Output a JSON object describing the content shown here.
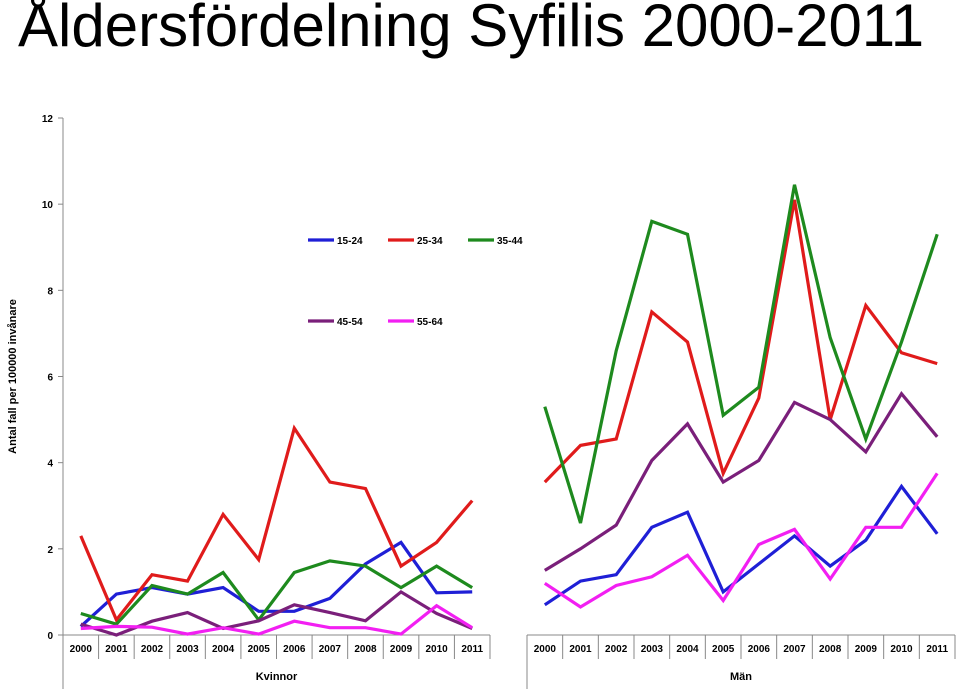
{
  "title": "Åldersfördelning Syfilis 2000-2011",
  "chart_data": {
    "type": "line",
    "ylabel": "Antal fall per 100000 invånare",
    "xlabel": "",
    "ylim": [
      0,
      12
    ],
    "yticks": [
      0,
      2,
      4,
      6,
      8,
      10,
      12
    ],
    "grid": false,
    "legend_position": "top-center, in two rows",
    "categories": [
      "2000",
      "2001",
      "2002",
      "2003",
      "2004",
      "2005",
      "2006",
      "2007",
      "2008",
      "2009",
      "2010",
      "2011"
    ],
    "groups": [
      {
        "name": "Kvinnor",
        "series": [
          {
            "name": "15-24",
            "color": "#1f1fd6",
            "values": [
              0.2,
              0.95,
              1.1,
              0.95,
              1.1,
              0.55,
              0.55,
              0.85,
              1.65,
              2.15,
              0.98,
              1.0
            ]
          },
          {
            "name": "25-34",
            "color": "#e01b1b",
            "values": [
              2.3,
              0.35,
              1.4,
              1.25,
              2.8,
              1.75,
              4.8,
              3.55,
              3.4,
              1.6,
              2.15,
              3.12
            ]
          },
          {
            "name": "35-44",
            "color": "#1e8a1e",
            "values": [
              0.5,
              0.25,
              1.15,
              0.95,
              1.45,
              0.35,
              1.45,
              1.72,
              1.6,
              1.1,
              1.6,
              1.1
            ]
          },
          {
            "name": "45-54",
            "color": "#7a1f7a",
            "values": [
              0.25,
              0.0,
              0.32,
              0.52,
              0.15,
              0.33,
              0.7,
              0.52,
              0.33,
              1.0,
              0.5,
              0.15
            ]
          },
          {
            "name": "55-64",
            "color": "#f21ff2",
            "values": [
              0.15,
              0.2,
              0.18,
              0.02,
              0.17,
              0.02,
              0.32,
              0.17,
              0.17,
              0.02,
              0.68,
              0.17
            ]
          }
        ]
      },
      {
        "name": "Män",
        "series": [
          {
            "name": "15-24",
            "color": "#1f1fd6",
            "values": [
              0.7,
              1.25,
              1.4,
              2.5,
              2.85,
              1.0,
              1.65,
              2.3,
              1.6,
              2.2,
              3.45,
              2.35
            ]
          },
          {
            "name": "25-34",
            "color": "#e01b1b",
            "values": [
              3.55,
              4.4,
              4.55,
              7.5,
              6.8,
              3.75,
              5.5,
              10.1,
              5.0,
              7.65,
              6.55,
              6.3
            ]
          },
          {
            "name": "35-44",
            "color": "#1e8a1e",
            "values": [
              5.3,
              2.6,
              6.6,
              9.6,
              9.3,
              5.1,
              5.75,
              10.45,
              6.9,
              4.55,
              6.8,
              9.3
            ]
          },
          {
            "name": "45-54",
            "color": "#7a1f7a",
            "values": [
              1.5,
              2.0,
              2.55,
              4.05,
              4.9,
              3.55,
              4.05,
              5.4,
              5.0,
              4.25,
              5.6,
              4.6
            ]
          },
          {
            "name": "55-64",
            "color": "#f21ff2",
            "values": [
              1.2,
              0.65,
              1.15,
              1.35,
              1.85,
              0.8,
              2.1,
              2.45,
              1.3,
              2.5,
              2.5,
              3.75
            ]
          }
        ]
      }
    ],
    "legend": [
      {
        "label": "15-24",
        "color": "#1f1fd6"
      },
      {
        "label": "25-34",
        "color": "#e01b1b"
      },
      {
        "label": "35-44",
        "color": "#1e8a1e"
      },
      {
        "label": "45-54",
        "color": "#7a1f7a"
      },
      {
        "label": "55-64",
        "color": "#f21ff2"
      }
    ]
  }
}
